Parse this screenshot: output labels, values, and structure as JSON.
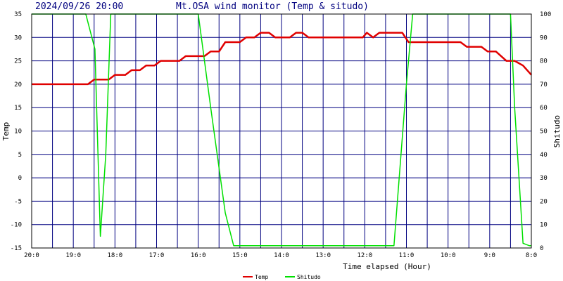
{
  "header": {
    "datetime": "2024/09/26 20:00",
    "title": "Mt.OSA wind monitor (Temp & situdo)"
  },
  "chart_data": {
    "type": "line",
    "title": "Mt.OSA wind monitor (Temp & situdo)",
    "xlabel": "Time elapsed (Hour)",
    "ylabel_left": "Temp",
    "ylabel_right": "Shitudo",
    "x_ticks": [
      {
        "label": "20:0",
        "hour": 0
      },
      {
        "label": "19:0",
        "hour": 1
      },
      {
        "label": "18:0",
        "hour": 2
      },
      {
        "label": "17:0",
        "hour": 3
      },
      {
        "label": "16:0",
        "hour": 4
      },
      {
        "label": "15:0",
        "hour": 5
      },
      {
        "label": "14:0",
        "hour": 6
      },
      {
        "label": "13:0",
        "hour": 7
      },
      {
        "label": "12:0",
        "hour": 8
      },
      {
        "label": "11:0",
        "hour": 9
      },
      {
        "label": "10:0",
        "hour": 10
      },
      {
        "label": "9:0",
        "hour": 11
      },
      {
        "label": "8:0",
        "hour": 12
      }
    ],
    "xlim": [
      0,
      12
    ],
    "ylim_left": [
      -15,
      35
    ],
    "ylim_right": [
      0,
      100
    ],
    "y_ticks_left": [
      "-15",
      "-10",
      "-5",
      "0",
      "5",
      "10",
      "15",
      "20",
      "25",
      "30",
      "35"
    ],
    "y_ticks_right": [
      "0",
      "10",
      "20",
      "30",
      "40",
      "50",
      "60",
      "70",
      "80",
      "90",
      "100"
    ],
    "grid": true,
    "series": [
      {
        "name": "Temp",
        "axis": "left",
        "color": "#e00000",
        "points": [
          [
            0,
            20
          ],
          [
            1.35,
            20
          ],
          [
            1.5,
            21
          ],
          [
            1.85,
            21
          ],
          [
            2.0,
            22
          ],
          [
            2.25,
            22
          ],
          [
            2.4,
            23
          ],
          [
            2.6,
            23
          ],
          [
            2.75,
            24
          ],
          [
            2.95,
            24
          ],
          [
            3.1,
            25
          ],
          [
            3.55,
            25
          ],
          [
            3.7,
            26
          ],
          [
            4.15,
            26
          ],
          [
            4.3,
            27
          ],
          [
            4.5,
            27
          ],
          [
            4.65,
            29
          ],
          [
            5.0,
            29
          ],
          [
            5.15,
            30
          ],
          [
            5.35,
            30
          ],
          [
            5.5,
            31
          ],
          [
            5.7,
            31
          ],
          [
            5.85,
            30
          ],
          [
            6.2,
            30
          ],
          [
            6.35,
            31
          ],
          [
            6.5,
            31
          ],
          [
            6.65,
            30
          ],
          [
            7.95,
            30
          ],
          [
            8.05,
            31
          ],
          [
            8.2,
            30
          ],
          [
            8.35,
            31
          ],
          [
            8.9,
            31
          ],
          [
            9.05,
            29
          ],
          [
            10.3,
            29
          ],
          [
            10.45,
            28
          ],
          [
            10.8,
            28
          ],
          [
            10.95,
            27
          ],
          [
            11.15,
            27
          ],
          [
            11.4,
            25
          ],
          [
            11.6,
            25
          ],
          [
            11.8,
            24
          ],
          [
            12,
            22
          ]
        ]
      },
      {
        "name": "Shitudo",
        "axis": "right",
        "color": "#00e000",
        "points": [
          [
            0,
            100
          ],
          [
            1.3,
            100
          ],
          [
            1.52,
            85
          ],
          [
            1.65,
            5
          ],
          [
            1.78,
            40
          ],
          [
            1.9,
            100
          ],
          [
            4.0,
            100
          ],
          [
            4.3,
            60
          ],
          [
            4.65,
            15
          ],
          [
            4.85,
            1
          ],
          [
            8.7,
            1
          ],
          [
            9.0,
            70
          ],
          [
            9.15,
            100
          ],
          [
            11.5,
            100
          ],
          [
            11.6,
            60
          ],
          [
            11.8,
            2
          ],
          [
            11.95,
            1
          ],
          [
            12,
            1
          ]
        ]
      }
    ],
    "legend_placement": "bottom-center"
  }
}
